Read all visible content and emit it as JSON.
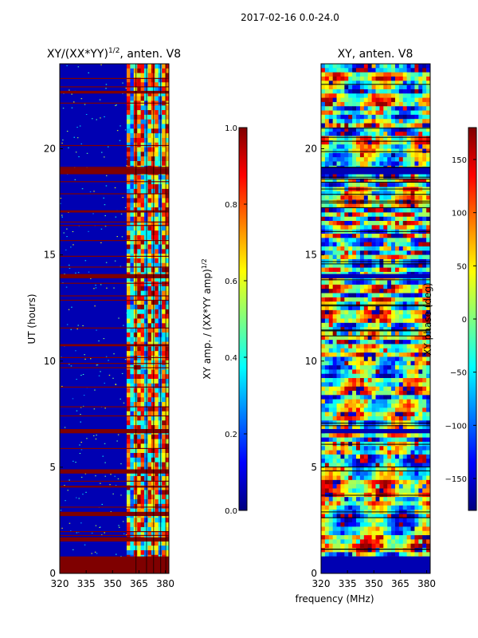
{
  "figure": {
    "suptitle": "2017-02-16 0.0-24.0",
    "xlabel": "frequency (MHz)"
  },
  "colors": {
    "background": "#ffffff",
    "jet_stops": [
      "#00007f",
      "#0000ff",
      "#007fff",
      "#00ffff",
      "#7fff7f",
      "#ffff00",
      "#ff7f00",
      "#ff0000",
      "#7f0000"
    ],
    "flag_red": "#7f0000",
    "line_black": "#000000"
  },
  "chart_data": [
    {
      "type": "heatmap",
      "title": "XY/(XX*YY)",
      "title_sup": "1/2",
      "title_suffix": ", anten. V8",
      "xlabel": "",
      "ylabel": "UT (hours)",
      "xlim": [
        320,
        382
      ],
      "ylim": [
        0,
        24
      ],
      "xticks": [
        320,
        335,
        350,
        365,
        380
      ],
      "yticks": [
        0,
        5,
        10,
        15,
        20
      ],
      "colorbar": {
        "label": "XY amp. / (XX*YY amp)",
        "label_sup": "1/2",
        "range": [
          0.0,
          1.0
        ],
        "ticks": [
          "0.0",
          "0.2",
          "0.4",
          "0.6",
          "0.8",
          "1.0"
        ],
        "tick_values": [
          0.0,
          0.2,
          0.4,
          0.6,
          0.8,
          1.0
        ]
      },
      "flagged_bands_hours": [
        [
          0.0,
          0.8
        ],
        [
          1.5,
          1.7
        ],
        [
          2.7,
          2.9
        ],
        [
          4.7,
          4.9
        ],
        [
          6.6,
          6.8
        ],
        [
          10.7,
          10.8
        ],
        [
          13.9,
          14.1
        ],
        [
          17.0,
          17.1
        ],
        [
          18.8,
          19.1
        ],
        [
          22.6,
          22.7
        ]
      ],
      "active_channel_range_mhz": [
        358,
        382
      ]
    },
    {
      "type": "heatmap",
      "title": "XY, anten. V8",
      "xlabel": "",
      "ylabel": "",
      "xlim": [
        320,
        382
      ],
      "ylim": [
        0,
        24
      ],
      "xticks": [
        320,
        335,
        350,
        365,
        380
      ],
      "yticks": [
        0,
        5,
        10,
        15,
        20
      ],
      "colorbar": {
        "label": "XY phase (deg)",
        "range": [
          -180,
          180
        ],
        "ticks": [
          "150",
          "100",
          "50",
          "0",
          "−50",
          "−100",
          "−150"
        ],
        "tick_values": [
          150,
          100,
          50,
          0,
          -50,
          -100,
          -150
        ]
      },
      "blank_bands_hours": [
        [
          0.0,
          0.8
        ],
        [
          6.6,
          6.8
        ],
        [
          13.9,
          14.1
        ],
        [
          18.8,
          19.1
        ]
      ]
    }
  ]
}
